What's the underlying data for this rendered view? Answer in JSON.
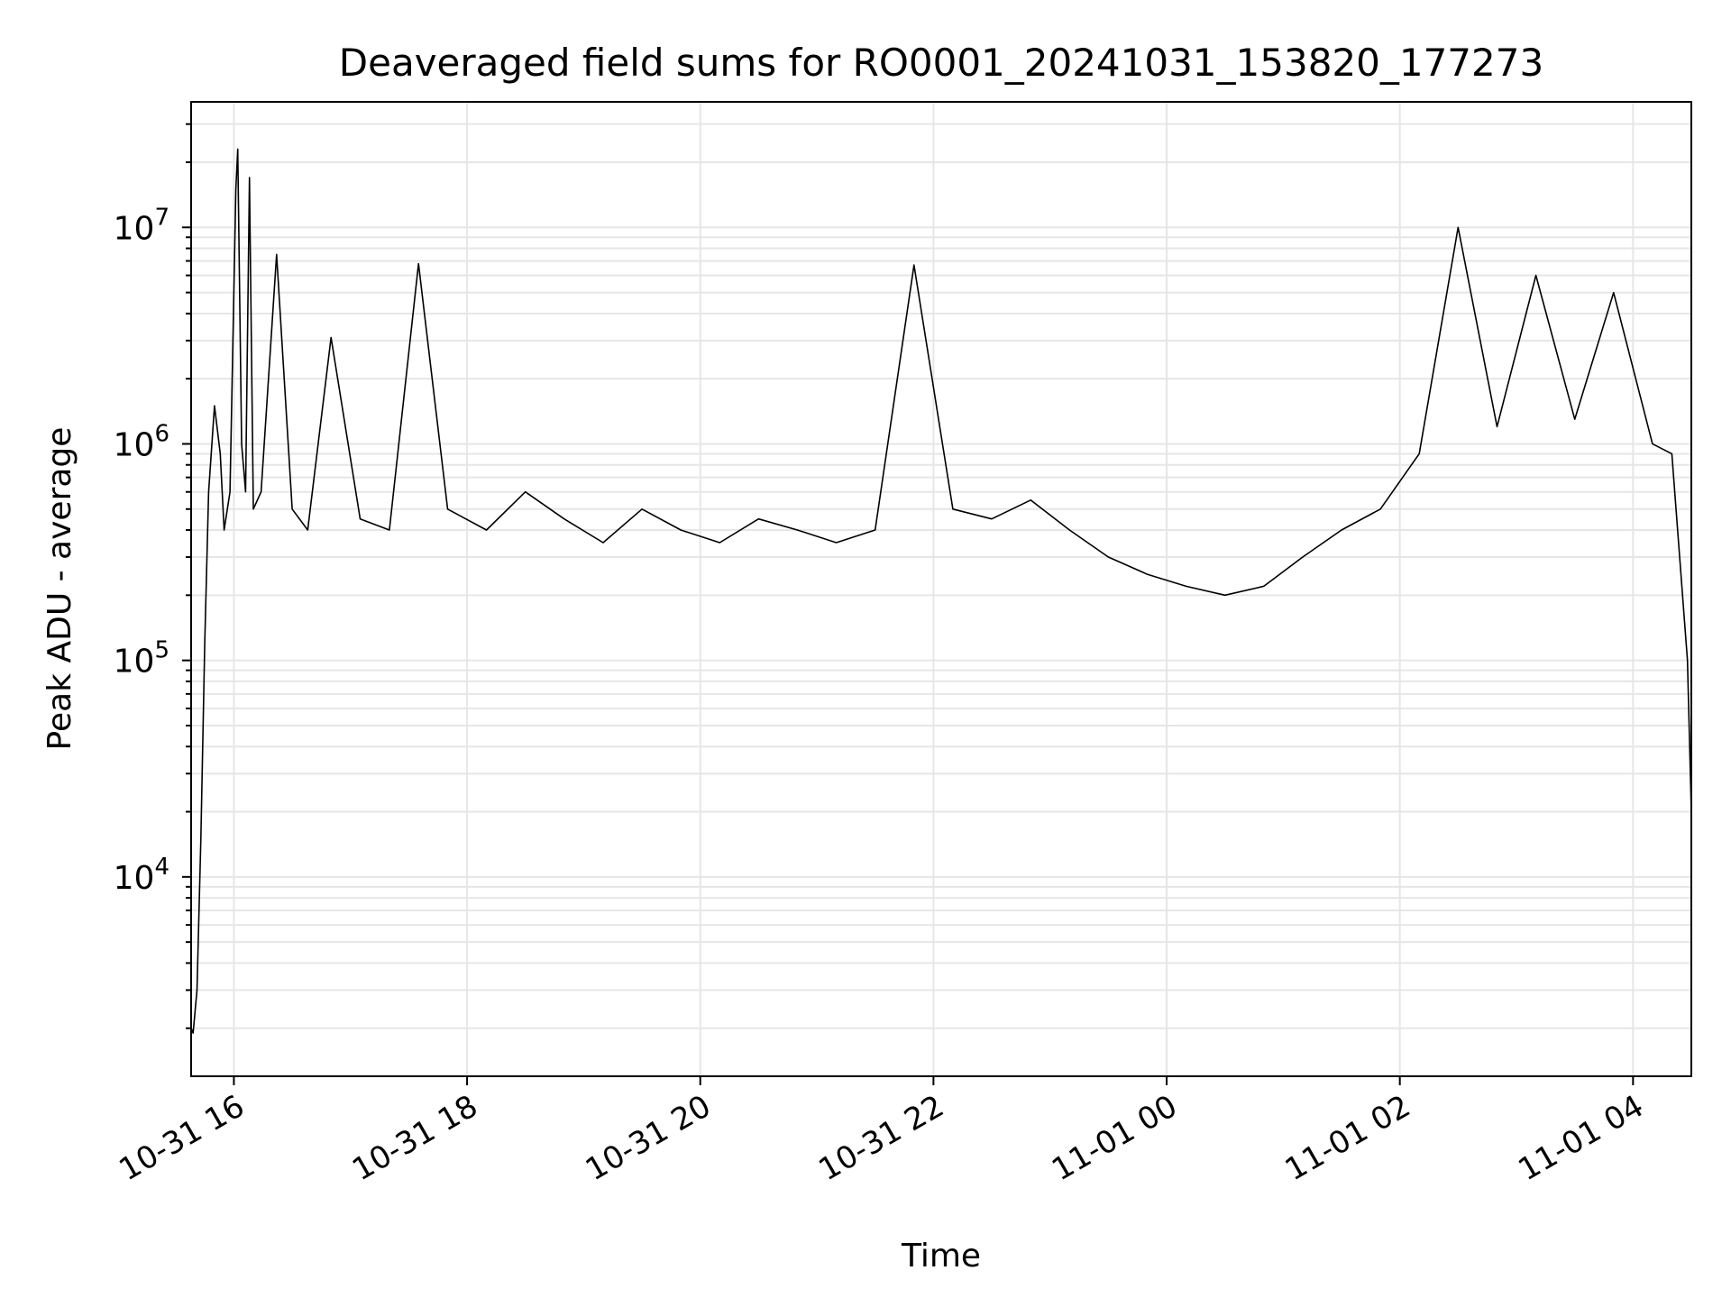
{
  "chart_data": {
    "type": "line",
    "title": "Deaveraged field sums for RO0001_20241031_153820_177273",
    "xlabel": "Time",
    "ylabel": "Peak ADU - average",
    "yscale": "log",
    "xlim": [
      "2024-10-31 15:38",
      "2024-11-01 04:30"
    ],
    "ylim": [
      1200,
      38000000
    ],
    "grid": "on (major and minor)",
    "line_color": "#000000",
    "grid_color": "#e6e6e6",
    "x_ticks": [
      {
        "value": "2024-10-31 16:00",
        "label": "10-31 16"
      },
      {
        "value": "2024-10-31 18:00",
        "label": "10-31 18"
      },
      {
        "value": "2024-10-31 20:00",
        "label": "10-31 20"
      },
      {
        "value": "2024-10-31 22:00",
        "label": "10-31 22"
      },
      {
        "value": "2024-11-01 00:00",
        "label": "11-01 00"
      },
      {
        "value": "2024-11-01 02:00",
        "label": "11-01 02"
      },
      {
        "value": "2024-11-01 04:00",
        "label": "11-01 04"
      }
    ],
    "y_ticks": [
      {
        "value": 10000,
        "base": "10",
        "exp": "4"
      },
      {
        "value": 100000,
        "base": "10",
        "exp": "5"
      },
      {
        "value": 1000000,
        "base": "10",
        "exp": "6"
      },
      {
        "value": 10000000,
        "base": "10",
        "exp": "7"
      }
    ],
    "series": [
      {
        "x": [
          "2024-10-31 15:38",
          "2024-10-31 15:39",
          "2024-10-31 15:41",
          "2024-10-31 15:43",
          "2024-10-31 15:45",
          "2024-10-31 15:47",
          "2024-10-31 15:50",
          "2024-10-31 15:53",
          "2024-10-31 15:55",
          "2024-10-31 15:58",
          "2024-10-31 16:01",
          "2024-10-31 16:02",
          "2024-10-31 16:04",
          "2024-10-31 16:06",
          "2024-10-31 16:08",
          "2024-10-31 16:10",
          "2024-10-31 16:14",
          "2024-10-31 16:22",
          "2024-10-31 16:30",
          "2024-10-31 16:38",
          "2024-10-31 16:50",
          "2024-10-31 17:05",
          "2024-10-31 17:20",
          "2024-10-31 17:35",
          "2024-10-31 17:50",
          "2024-10-31 18:10",
          "2024-10-31 18:30",
          "2024-10-31 18:50",
          "2024-10-31 19:10",
          "2024-10-31 19:30",
          "2024-10-31 19:50",
          "2024-10-31 20:10",
          "2024-10-31 20:30",
          "2024-10-31 20:50",
          "2024-10-31 21:10",
          "2024-10-31 21:30",
          "2024-10-31 21:50",
          "2024-10-31 22:10",
          "2024-10-31 22:30",
          "2024-10-31 22:50",
          "2024-10-31 23:10",
          "2024-10-31 23:30",
          "2024-10-31 23:50",
          "2024-11-01 00:10",
          "2024-11-01 00:30",
          "2024-11-01 00:50",
          "2024-11-01 01:10",
          "2024-11-01 01:30",
          "2024-11-01 01:50",
          "2024-11-01 02:10",
          "2024-11-01 02:30",
          "2024-11-01 02:50",
          "2024-11-01 03:10",
          "2024-11-01 03:30",
          "2024-11-01 03:50",
          "2024-11-01 04:10",
          "2024-11-01 04:20",
          "2024-11-01 04:28",
          "2024-11-01 04:30"
        ],
        "y": [
          2000,
          1900,
          3000,
          15000,
          120000,
          600000,
          1500000,
          900000,
          400000,
          600000,
          15000000,
          23000000,
          1000000,
          600000,
          17000000,
          500000,
          600000,
          7500000,
          500000,
          400000,
          3100000,
          450000,
          400000,
          6800000,
          500000,
          400000,
          600000,
          450000,
          350000,
          500000,
          400000,
          350000,
          450000,
          400000,
          350000,
          400000,
          6700000,
          500000,
          450000,
          550000,
          400000,
          300000,
          250000,
          220000,
          200000,
          220000,
          300000,
          400000,
          500000,
          900000,
          10000000,
          1200000,
          6000000,
          1300000,
          5000000,
          1000000,
          900000,
          100000,
          20000
        ]
      }
    ]
  }
}
